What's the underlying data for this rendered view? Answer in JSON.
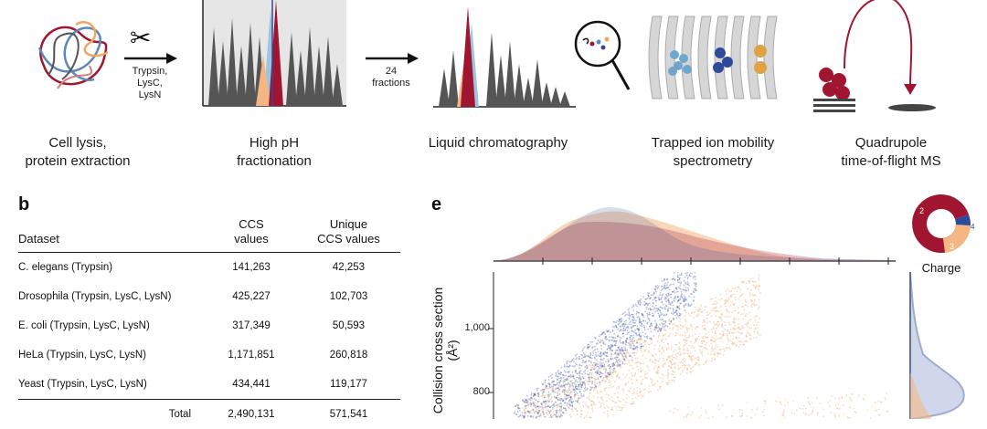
{
  "workflow": {
    "steps": [
      {
        "label": "Cell lysis,\nprotein extraction"
      },
      {
        "label": "High pH\nfractionation"
      },
      {
        "label": "Liquid chromatography"
      },
      {
        "label": "Trapped ion mobility\nspectrometry"
      },
      {
        "label": "Quadrupole\ntime-of-flight MS"
      }
    ],
    "enzymes": "Trypsin,\nLysC,\nLysN",
    "fractions": "24\nfractions"
  },
  "panel_b": {
    "letter": "b",
    "columns": [
      "Dataset",
      "CCS\nvalues",
      "Unique\nCCS values"
    ],
    "rows": [
      {
        "dataset": "C. elegans (Trypsin)",
        "ccs": "141,263",
        "unique": "42,253"
      },
      {
        "dataset": "Drosophila (Trypsin, LysC, LysN)",
        "ccs": "425,227",
        "unique": "102,703"
      },
      {
        "dataset": "E. coli (Trypsin, LysC, LysN)",
        "ccs": "317,349",
        "unique": "50,593"
      },
      {
        "dataset": "HeLa (Trypsin, LysC, LysN)",
        "ccs": "1,171,851",
        "unique": "260,818"
      },
      {
        "dataset": "Yeast (Trypsin, LysC, LysN)",
        "ccs": "434,441",
        "unique": "119,177"
      }
    ],
    "total": {
      "label": "Total",
      "ccs": "2,490,131",
      "unique": "571,541"
    }
  },
  "panel_e": {
    "letter": "e",
    "ylabel": "Collision cross section (Å²)",
    "yticks": [
      "1,000",
      "800"
    ],
    "charge_label": "Charge",
    "charge_states": [
      {
        "charge": "2",
        "color": "#a01530"
      },
      {
        "charge": "3",
        "color": "#f4b783"
      },
      {
        "charge": "4",
        "color": "#2d4a9b"
      }
    ]
  },
  "chart_data": {
    "type": "scatter",
    "title": "",
    "ylabel": "Collision cross section (Å²)",
    "ytick_labels": [
      "1,000",
      "800"
    ],
    "series": [
      {
        "name": "Charge 2",
        "color": "#a01530"
      },
      {
        "name": "Charge 3",
        "color": "#f4b783"
      },
      {
        "name": "Charge 4",
        "color": "#2d4a9b"
      }
    ],
    "legend": "top-right donut (Charge)"
  },
  "colors": {
    "red": "#a01530",
    "orange": "#f4b783",
    "blue": "#2d4a9b",
    "lightblue": "#9dc4e0",
    "gray": "#4a4a4a"
  }
}
